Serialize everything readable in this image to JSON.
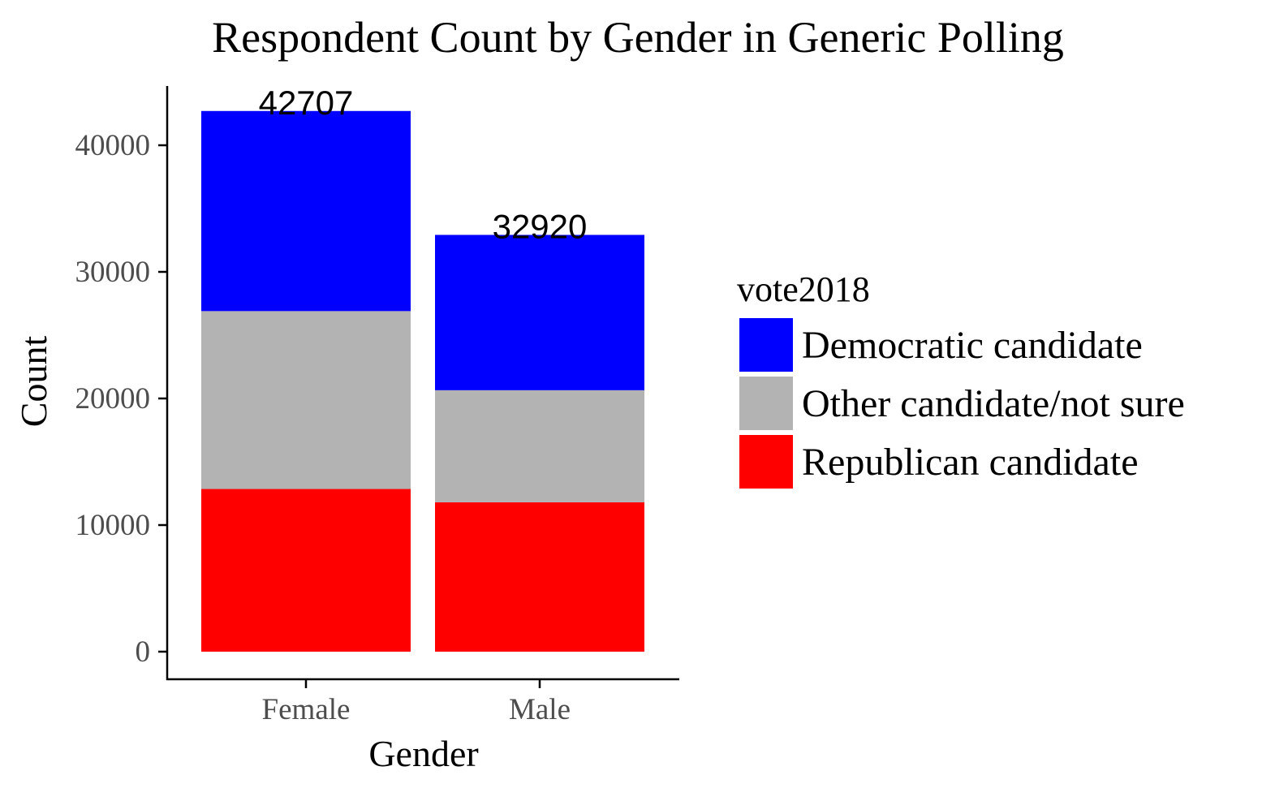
{
  "chart_data": {
    "type": "bar",
    "stacked": true,
    "title": "Respondent Count by Gender in Generic Polling",
    "xlabel": "Gender",
    "ylabel": "Count",
    "categories": [
      "Female",
      "Male"
    ],
    "series": [
      {
        "name": "Republican candidate",
        "color": "#ff0000",
        "values": [
          12850,
          11800
        ]
      },
      {
        "name": "Other candidate/not sure",
        "color": "#b3b3b3",
        "values": [
          14050,
          8850
        ]
      },
      {
        "name": "Democratic candidate",
        "color": "#0000ff",
        "values": [
          15807,
          12270
        ]
      }
    ],
    "totals": [
      42707,
      32920
    ],
    "total_labels": [
      "42707",
      "32920"
    ],
    "yticks": [
      0,
      10000,
      20000,
      30000,
      40000
    ],
    "ytick_labels": [
      "0",
      "10000",
      "20000",
      "30000",
      "40000"
    ],
    "ylim": [
      0,
      44750
    ],
    "legend": {
      "title": "vote2018",
      "position": "right",
      "entries": [
        {
          "label": "Democratic candidate",
          "color": "#0000ff"
        },
        {
          "label": "Other candidate/not sure",
          "color": "#b3b3b3"
        },
        {
          "label": "Republican candidate",
          "color": "#ff0000"
        }
      ]
    },
    "grid": false
  }
}
